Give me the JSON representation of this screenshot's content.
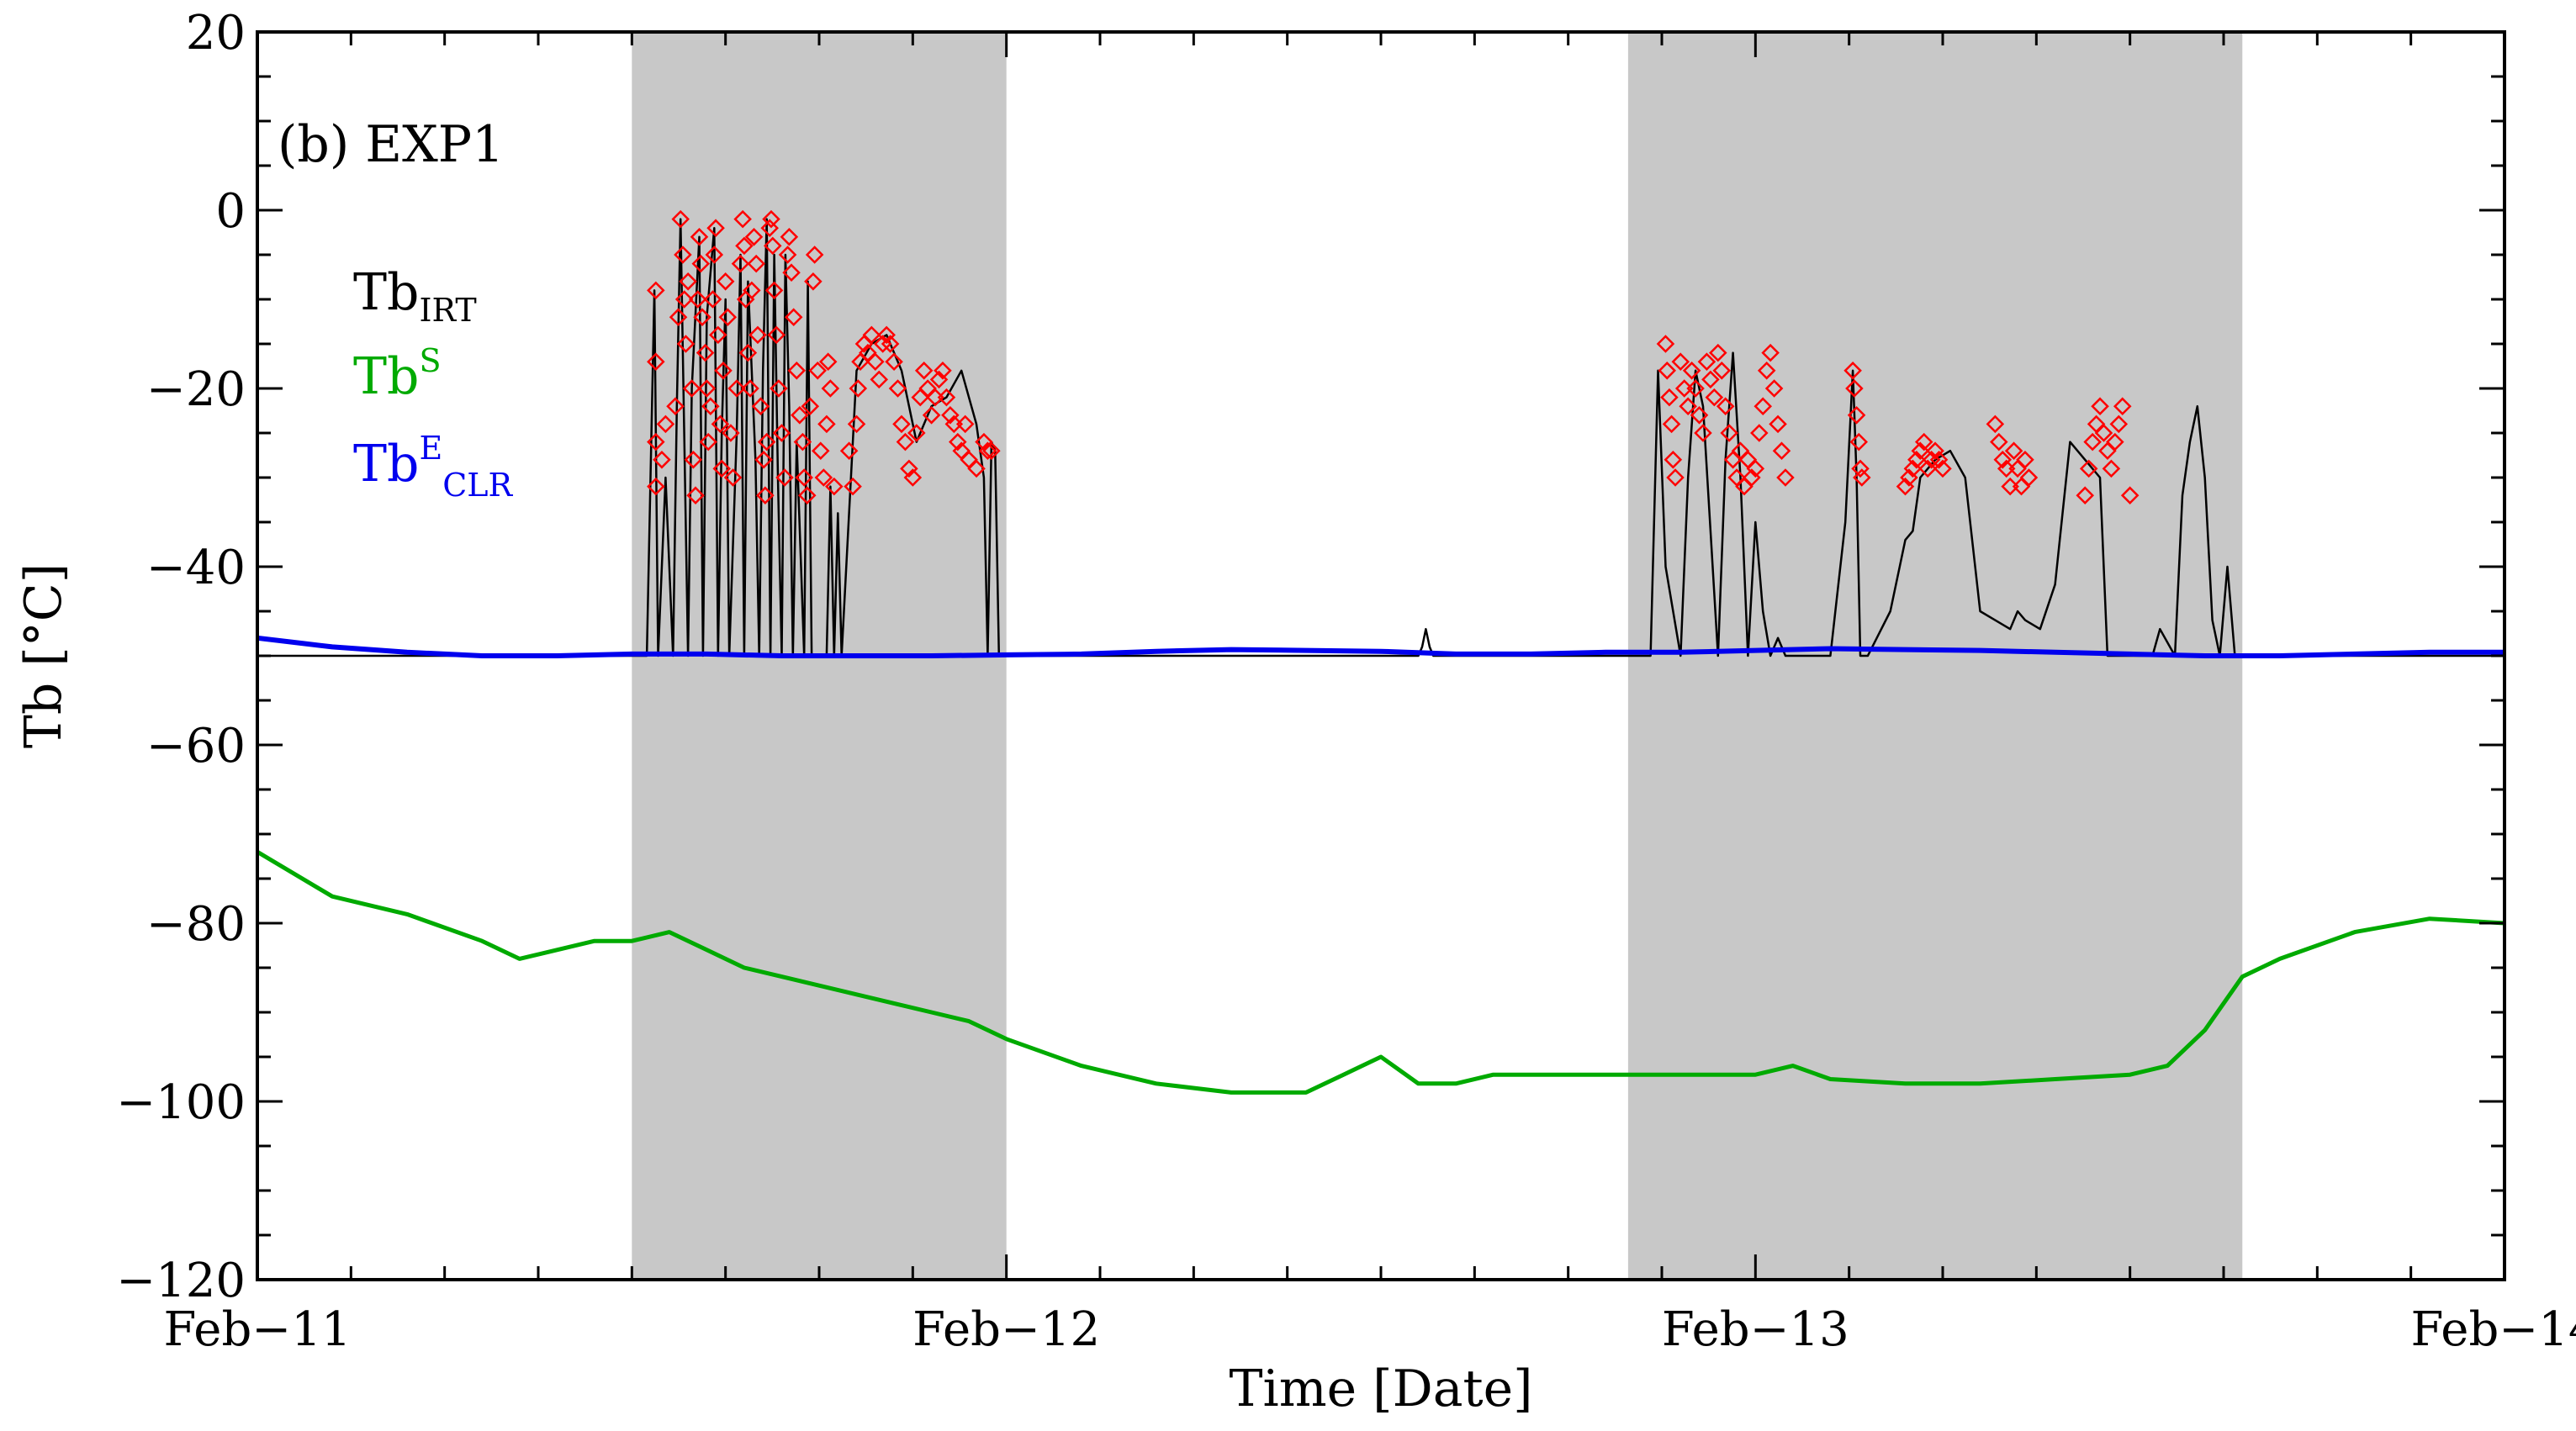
{
  "chart_data": {
    "type": "line",
    "panel_label": "(b) EXP1",
    "xlabel": "Time [Date]",
    "ylabel": "Tb [°C]",
    "x_unit": "days since Feb-11 00:00",
    "xlim": [
      0,
      3
    ],
    "ylim": [
      -120,
      20
    ],
    "x_ticks": [
      {
        "value": 0,
        "label": "Feb−11"
      },
      {
        "value": 1,
        "label": "Feb−12"
      },
      {
        "value": 2,
        "label": "Feb−13"
      },
      {
        "value": 3,
        "label": "Feb−14"
      }
    ],
    "y_ticks": [
      {
        "value": 20,
        "label": "20"
      },
      {
        "value": 0,
        "label": "0"
      },
      {
        "value": -20,
        "label": "−20"
      },
      {
        "value": -40,
        "label": "−40"
      },
      {
        "value": -60,
        "label": "−60"
      },
      {
        "value": -80,
        "label": "−80"
      },
      {
        "value": -100,
        "label": "−100"
      },
      {
        "value": -120,
        "label": "−120"
      }
    ],
    "shaded_periods": [
      [
        0.5,
        1.0
      ],
      [
        1.83,
        2.65
      ]
    ],
    "legend": [
      {
        "base": "Tb",
        "sub": "IRT",
        "sup": "",
        "color": "#000000"
      },
      {
        "base": "Tb",
        "sub": "",
        "sup": "S",
        "color": "#00aa00"
      },
      {
        "base": "Tb",
        "sub": "CLR",
        "sup": "E",
        "color": "#0000ee"
      }
    ],
    "series": [
      {
        "name": "Tb_IRT",
        "color": "#000000",
        "x": [
          0,
          0.5,
          0.52,
          0.53,
          0.535,
          0.545,
          0.555,
          0.56,
          0.565,
          0.575,
          0.58,
          0.59,
          0.595,
          0.6,
          0.61,
          0.615,
          0.62,
          0.625,
          0.63,
          0.64,
          0.645,
          0.65,
          0.655,
          0.665,
          0.67,
          0.675,
          0.68,
          0.685,
          0.69,
          0.695,
          0.7,
          0.705,
          0.71,
          0.715,
          0.72,
          0.73,
          0.735,
          0.74,
          0.75,
          0.76,
          0.765,
          0.77,
          0.775,
          0.78,
          0.8,
          0.82,
          0.84,
          0.86,
          0.88,
          0.9,
          0.92,
          0.94,
          0.96,
          0.97,
          0.975,
          0.98,
          0.985,
          0.99,
          1.0,
          1.55,
          1.555,
          1.56,
          1.565,
          1.57,
          1.85,
          1.86,
          1.87,
          1.88,
          1.9,
          1.91,
          1.92,
          1.93,
          1.95,
          1.96,
          1.97,
          1.98,
          1.99,
          2.0,
          2.01,
          2.02,
          2.03,
          2.04,
          2.05,
          2.06,
          2.08,
          2.1,
          2.12,
          2.13,
          2.135,
          2.14,
          2.145,
          2.15,
          2.18,
          2.2,
          2.21,
          2.22,
          2.24,
          2.26,
          2.28,
          2.3,
          2.32,
          2.34,
          2.35,
          2.36,
          2.38,
          2.4,
          2.42,
          2.44,
          2.46,
          2.47,
          2.48,
          2.49,
          2.5,
          2.51,
          2.52,
          2.53,
          2.54,
          2.56,
          2.57,
          2.58,
          2.59,
          2.6,
          2.61,
          2.62,
          2.63,
          2.64,
          2.66,
          3.0
        ],
        "y": [
          -50,
          -50,
          -50,
          -9,
          -50,
          -30,
          -50,
          -22,
          -1,
          -50,
          -20,
          -3,
          -50,
          -12,
          -2,
          -50,
          -25,
          -10,
          -50,
          -25,
          -5,
          -50,
          -8,
          -28,
          -50,
          -18,
          -1,
          -50,
          -5,
          -30,
          -50,
          -5,
          -22,
          -50,
          -26,
          -50,
          -8,
          -50,
          -50,
          -50,
          -31,
          -50,
          -34,
          -50,
          -18,
          -15,
          -14,
          -18,
          -26,
          -22,
          -21,
          -18,
          -24,
          -30,
          -50,
          -26,
          -27,
          -50,
          -50,
          -50,
          -49,
          -47,
          -49,
          -50,
          -50,
          -50,
          -18,
          -40,
          -50,
          -30,
          -18,
          -22,
          -50,
          -28,
          -16,
          -30,
          -50,
          -35,
          -45,
          -50,
          -48,
          -50,
          -50,
          -50,
          -50,
          -50,
          -35,
          -18,
          -30,
          -50,
          -50,
          -50,
          -45,
          -37,
          -36,
          -30,
          -28,
          -27,
          -30,
          -45,
          -46,
          -47,
          -45,
          -46,
          -47,
          -42,
          -26,
          -28,
          -30,
          -50,
          -50,
          -50,
          -50,
          -50,
          -50,
          -50,
          -47,
          -50,
          -32,
          -26,
          -22,
          -30,
          -46,
          -50,
          -40,
          -50,
          -50,
          -50
        ]
      },
      {
        "name": "Tb_S",
        "color": "#00aa00",
        "x": [
          0,
          0.1,
          0.2,
          0.3,
          0.35,
          0.4,
          0.45,
          0.5,
          0.55,
          0.6,
          0.65,
          0.7,
          0.75,
          0.8,
          0.85,
          0.9,
          0.95,
          1.0,
          1.1,
          1.2,
          1.3,
          1.4,
          1.45,
          1.5,
          1.55,
          1.6,
          1.65,
          1.7,
          1.75,
          1.8,
          1.9,
          2.0,
          2.05,
          2.1,
          2.2,
          2.3,
          2.4,
          2.5,
          2.55,
          2.6,
          2.65,
          2.7,
          2.8,
          2.9,
          3.0
        ],
        "y": [
          -72,
          -77,
          -79,
          -82,
          -84,
          -83,
          -82,
          -82,
          -81,
          -83,
          -85,
          -86,
          -87,
          -88,
          -89,
          -90,
          -91,
          -93,
          -96,
          -98,
          -99,
          -99,
          -97,
          -95,
          -98,
          -98,
          -97,
          -97,
          -97,
          -97,
          -97,
          -97,
          -96,
          -97.5,
          -98,
          -98,
          -97.5,
          -97,
          -96,
          -92,
          -86,
          -84,
          -81,
          -79.5,
          -80
        ]
      },
      {
        "name": "Tb_CLR_E",
        "color": "#0000ee",
        "x": [
          0,
          0.1,
          0.2,
          0.3,
          0.4,
          0.5,
          0.6,
          0.7,
          0.8,
          0.9,
          1.0,
          1.1,
          1.2,
          1.3,
          1.4,
          1.5,
          1.6,
          1.7,
          1.8,
          1.9,
          2.0,
          2.1,
          2.2,
          2.3,
          2.4,
          2.5,
          2.6,
          2.7,
          2.8,
          2.9,
          3.0
        ],
        "y": [
          -48,
          -49,
          -49.6,
          -50,
          -50,
          -49.8,
          -49.8,
          -50,
          -50,
          -50,
          -49.9,
          -49.8,
          -49.5,
          -49.3,
          -49.4,
          -49.5,
          -49.8,
          -49.8,
          -49.6,
          -49.6,
          -49.4,
          -49.2,
          -49.3,
          -49.4,
          -49.6,
          -49.8,
          -50,
          -50,
          -49.8,
          -49.6,
          -49.6
        ]
      }
    ],
    "markers": {
      "name": "Tb_IRT markers",
      "symbol": "diamond",
      "color": "#ff0000",
      "points": [
        [
          0.532,
          -9
        ],
        [
          0.532,
          -17
        ],
        [
          0.532,
          -26
        ],
        [
          0.532,
          -31
        ],
        [
          0.54,
          -28
        ],
        [
          0.545,
          -24
        ],
        [
          0.558,
          -22
        ],
        [
          0.562,
          -12
        ],
        [
          0.565,
          -1
        ],
        [
          0.568,
          -5
        ],
        [
          0.57,
          -10
        ],
        [
          0.572,
          -15
        ],
        [
          0.575,
          -8
        ],
        [
          0.58,
          -20
        ],
        [
          0.582,
          -28
        ],
        [
          0.585,
          -32
        ],
        [
          0.588,
          -10
        ],
        [
          0.59,
          -3
        ],
        [
          0.592,
          -6
        ],
        [
          0.594,
          -12
        ],
        [
          0.598,
          -16
        ],
        [
          0.6,
          -20
        ],
        [
          0.602,
          -26
        ],
        [
          0.605,
          -22
        ],
        [
          0.608,
          -10
        ],
        [
          0.61,
          -5
        ],
        [
          0.612,
          -2
        ],
        [
          0.615,
          -14
        ],
        [
          0.618,
          -24
        ],
        [
          0.62,
          -29
        ],
        [
          0.622,
          -18
        ],
        [
          0.625,
          -8
        ],
        [
          0.628,
          -12
        ],
        [
          0.632,
          -25
        ],
        [
          0.635,
          -30
        ],
        [
          0.64,
          -20
        ],
        [
          0.645,
          -6
        ],
        [
          0.648,
          -1
        ],
        [
          0.65,
          -4
        ],
        [
          0.652,
          -10
        ],
        [
          0.655,
          -16
        ],
        [
          0.658,
          -20
        ],
        [
          0.66,
          -9
        ],
        [
          0.663,
          -3
        ],
        [
          0.666,
          -6
        ],
        [
          0.668,
          -14
        ],
        [
          0.672,
          -22
        ],
        [
          0.676,
          -28
        ],
        [
          0.678,
          -32
        ],
        [
          0.68,
          -26
        ],
        [
          0.684,
          -2
        ],
        [
          0.686,
          -1
        ],
        [
          0.688,
          -4
        ],
        [
          0.69,
          -9
        ],
        [
          0.693,
          -14
        ],
        [
          0.696,
          -20
        ],
        [
          0.7,
          -25
        ],
        [
          0.704,
          -30
        ],
        [
          0.708,
          -5
        ],
        [
          0.71,
          -3
        ],
        [
          0.713,
          -7
        ],
        [
          0.716,
          -12
        ],
        [
          0.72,
          -18
        ],
        [
          0.724,
          -23
        ],
        [
          0.728,
          -26
        ],
        [
          0.73,
          -30
        ],
        [
          0.734,
          -32
        ],
        [
          0.738,
          -22
        ],
        [
          0.742,
          -8
        ],
        [
          0.744,
          -5
        ],
        [
          0.748,
          -18
        ],
        [
          0.752,
          -27
        ],
        [
          0.756,
          -30
        ],
        [
          0.76,
          -24
        ],
        [
          0.762,
          -17
        ],
        [
          0.765,
          -20
        ],
        [
          0.77,
          -31
        ],
        [
          0.79,
          -27
        ],
        [
          0.795,
          -31
        ],
        [
          0.8,
          -24
        ],
        [
          0.802,
          -20
        ],
        [
          0.805,
          -17
        ],
        [
          0.81,
          -15
        ],
        [
          0.815,
          -16
        ],
        [
          0.82,
          -14
        ],
        [
          0.825,
          -17
        ],
        [
          0.83,
          -19
        ],
        [
          0.835,
          -15
        ],
        [
          0.84,
          -14
        ],
        [
          0.845,
          -15
        ],
        [
          0.85,
          -17
        ],
        [
          0.855,
          -20
        ],
        [
          0.86,
          -24
        ],
        [
          0.865,
          -26
        ],
        [
          0.87,
          -29
        ],
        [
          0.875,
          -30
        ],
        [
          0.88,
          -25
        ],
        [
          0.885,
          -21
        ],
        [
          0.89,
          -18
        ],
        [
          0.895,
          -20
        ],
        [
          0.9,
          -23
        ],
        [
          0.905,
          -21
        ],
        [
          0.91,
          -19
        ],
        [
          0.915,
          -18
        ],
        [
          0.92,
          -21
        ],
        [
          0.925,
          -23
        ],
        [
          0.93,
          -24
        ],
        [
          0.935,
          -26
        ],
        [
          0.94,
          -27
        ],
        [
          0.945,
          -24
        ],
        [
          0.95,
          -28
        ],
        [
          0.96,
          -29
        ],
        [
          0.97,
          -26
        ],
        [
          0.975,
          -27
        ],
        [
          0.98,
          -27
        ],
        [
          1.88,
          -15
        ],
        [
          1.882,
          -18
        ],
        [
          1.885,
          -21
        ],
        [
          1.888,
          -24
        ],
        [
          1.89,
          -28
        ],
        [
          1.893,
          -30
        ],
        [
          1.9,
          -17
        ],
        [
          1.905,
          -20
        ],
        [
          1.91,
          -22
        ],
        [
          1.915,
          -18
        ],
        [
          1.92,
          -20
        ],
        [
          1.925,
          -23
        ],
        [
          1.93,
          -25
        ],
        [
          1.935,
          -17
        ],
        [
          1.94,
          -19
        ],
        [
          1.945,
          -21
        ],
        [
          1.95,
          -16
        ],
        [
          1.955,
          -18
        ],
        [
          1.96,
          -22
        ],
        [
          1.965,
          -25
        ],
        [
          1.97,
          -28
        ],
        [
          1.975,
          -30
        ],
        [
          1.98,
          -27
        ],
        [
          1.985,
          -31
        ],
        [
          1.99,
          -28
        ],
        [
          1.995,
          -30
        ],
        [
          2.0,
          -29
        ],
        [
          2.005,
          -25
        ],
        [
          2.01,
          -22
        ],
        [
          2.015,
          -18
        ],
        [
          2.02,
          -16
        ],
        [
          2.025,
          -20
        ],
        [
          2.03,
          -24
        ],
        [
          2.035,
          -27
        ],
        [
          2.04,
          -30
        ],
        [
          2.13,
          -18
        ],
        [
          2.132,
          -20
        ],
        [
          2.135,
          -23
        ],
        [
          2.138,
          -26
        ],
        [
          2.14,
          -29
        ],
        [
          2.142,
          -30
        ],
        [
          2.2,
          -31
        ],
        [
          2.205,
          -30
        ],
        [
          2.21,
          -29
        ],
        [
          2.215,
          -28
        ],
        [
          2.22,
          -27
        ],
        [
          2.225,
          -26
        ],
        [
          2.23,
          -29
        ],
        [
          2.235,
          -28
        ],
        [
          2.24,
          -27
        ],
        [
          2.245,
          -28
        ],
        [
          2.25,
          -29
        ],
        [
          2.32,
          -24
        ],
        [
          2.325,
          -26
        ],
        [
          2.33,
          -28
        ],
        [
          2.335,
          -29
        ],
        [
          2.34,
          -31
        ],
        [
          2.345,
          -27
        ],
        [
          2.35,
          -29
        ],
        [
          2.355,
          -31
        ],
        [
          2.36,
          -28
        ],
        [
          2.365,
          -30
        ],
        [
          2.44,
          -32
        ],
        [
          2.445,
          -29
        ],
        [
          2.45,
          -26
        ],
        [
          2.455,
          -24
        ],
        [
          2.46,
          -22
        ],
        [
          2.465,
          -25
        ],
        [
          2.47,
          -27
        ],
        [
          2.475,
          -29
        ],
        [
          2.48,
          -26
        ],
        [
          2.485,
          -24
        ],
        [
          2.49,
          -22
        ],
        [
          2.5,
          -32
        ]
      ]
    }
  }
}
